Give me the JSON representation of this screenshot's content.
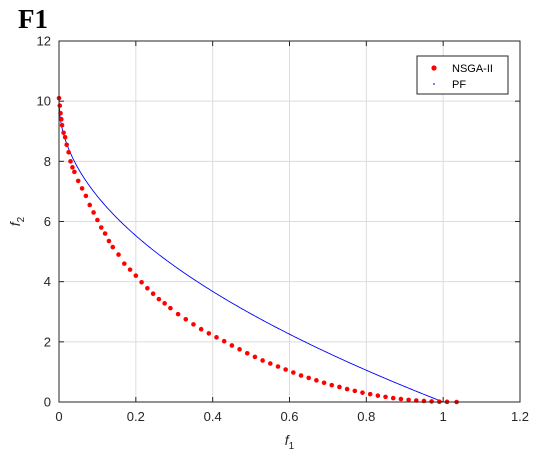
{
  "page_title": "F1",
  "colors": {
    "nsga": "#ff0000",
    "pf": "#0000ff",
    "grid": "#dcdcdc",
    "axes": "#262626"
  },
  "chart_data": {
    "type": "scatter",
    "title": "F1",
    "xlabel": "f",
    "xlabel_sub": "1",
    "ylabel": "f",
    "ylabel_sub": "2",
    "xlim": [
      0,
      1.2
    ],
    "ylim": [
      0,
      12
    ],
    "xticks": [
      0,
      0.2,
      0.4,
      0.6,
      0.8,
      1,
      1.2
    ],
    "xtick_labels": [
      "0",
      "0.2",
      "0.4",
      "0.6",
      "0.8",
      "1",
      "1.2"
    ],
    "yticks": [
      0,
      2,
      4,
      6,
      8,
      10,
      12
    ],
    "ytick_labels": [
      "0",
      "2",
      "4",
      "6",
      "8",
      "10",
      "12"
    ],
    "grid": true,
    "legend_position": "top-right",
    "series": [
      {
        "name": "NSGA-II",
        "marker": "dot",
        "points": [
          [
            0.0,
            10.1
          ],
          [
            0.002,
            9.85
          ],
          [
            0.004,
            9.6
          ],
          [
            0.006,
            9.4
          ],
          [
            0.008,
            9.2
          ],
          [
            0.012,
            8.95
          ],
          [
            0.016,
            8.8
          ],
          [
            0.02,
            8.55
          ],
          [
            0.025,
            8.3
          ],
          [
            0.03,
            8.0
          ],
          [
            0.035,
            7.8
          ],
          [
            0.04,
            7.65
          ],
          [
            0.05,
            7.35
          ],
          [
            0.06,
            7.1
          ],
          [
            0.07,
            6.85
          ],
          [
            0.08,
            6.55
          ],
          [
            0.09,
            6.3
          ],
          [
            0.1,
            6.05
          ],
          [
            0.11,
            5.8
          ],
          [
            0.12,
            5.6
          ],
          [
            0.13,
            5.35
          ],
          [
            0.14,
            5.15
          ],
          [
            0.155,
            4.9
          ],
          [
            0.17,
            4.6
          ],
          [
            0.185,
            4.4
          ],
          [
            0.2,
            4.2
          ],
          [
            0.215,
            3.98
          ],
          [
            0.23,
            3.78
          ],
          [
            0.245,
            3.6
          ],
          [
            0.26,
            3.42
          ],
          [
            0.275,
            3.28
          ],
          [
            0.29,
            3.12
          ],
          [
            0.31,
            2.92
          ],
          [
            0.33,
            2.75
          ],
          [
            0.35,
            2.58
          ],
          [
            0.37,
            2.42
          ],
          [
            0.39,
            2.28
          ],
          [
            0.41,
            2.15
          ],
          [
            0.43,
            2.02
          ],
          [
            0.45,
            1.88
          ],
          [
            0.47,
            1.75
          ],
          [
            0.49,
            1.62
          ],
          [
            0.51,
            1.5
          ],
          [
            0.53,
            1.38
          ],
          [
            0.55,
            1.28
          ],
          [
            0.57,
            1.18
          ],
          [
            0.59,
            1.08
          ],
          [
            0.61,
            0.98
          ],
          [
            0.63,
            0.88
          ],
          [
            0.65,
            0.8
          ],
          [
            0.67,
            0.72
          ],
          [
            0.69,
            0.64
          ],
          [
            0.71,
            0.56
          ],
          [
            0.73,
            0.5
          ],
          [
            0.75,
            0.43
          ],
          [
            0.77,
            0.37
          ],
          [
            0.79,
            0.31
          ],
          [
            0.81,
            0.26
          ],
          [
            0.83,
            0.21
          ],
          [
            0.85,
            0.17
          ],
          [
            0.87,
            0.13
          ],
          [
            0.89,
            0.1
          ],
          [
            0.91,
            0.07
          ],
          [
            0.93,
            0.05
          ],
          [
            0.95,
            0.035
          ],
          [
            0.97,
            0.02
          ],
          [
            0.99,
            0.01
          ],
          [
            1.01,
            0.005
          ],
          [
            1.035,
            0.0
          ]
        ]
      },
      {
        "name": "PF",
        "marker": "line",
        "curve": "f2 = 10*(1 - sqrt(f1))"
      }
    ]
  }
}
